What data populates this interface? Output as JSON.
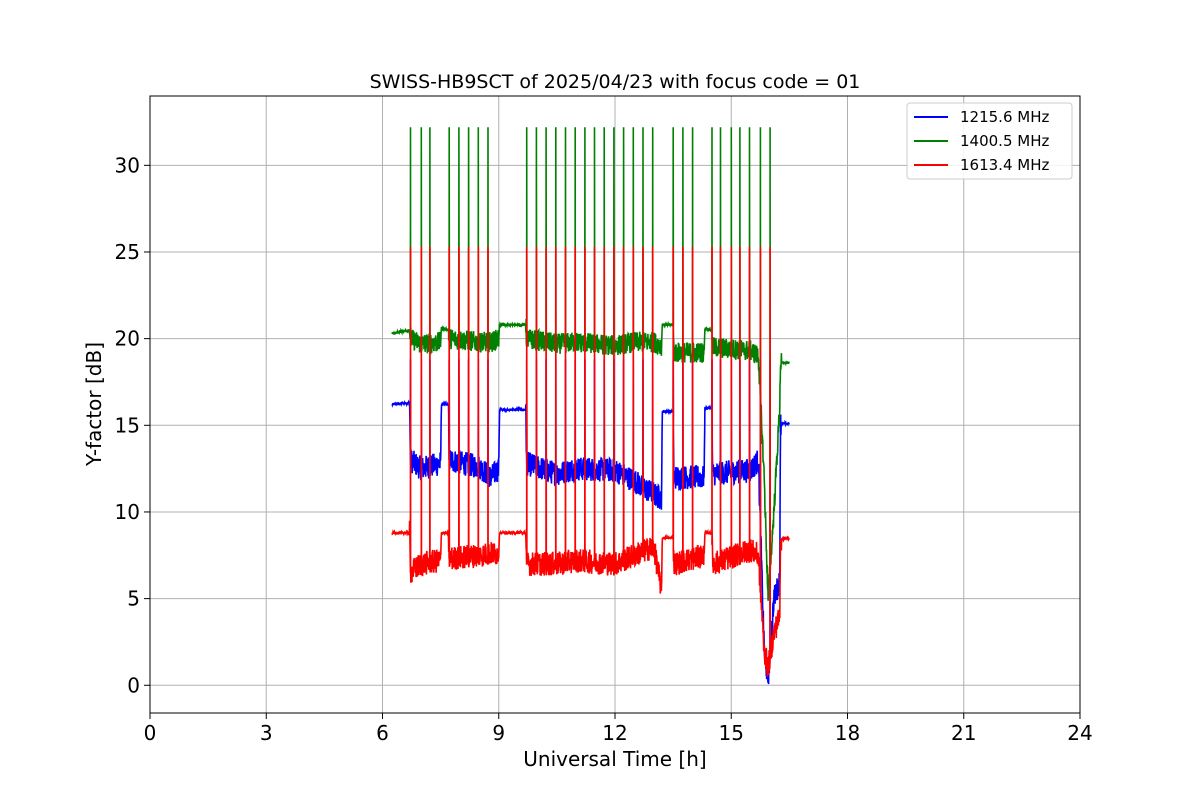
{
  "chart_data": {
    "type": "line",
    "title": "SWISS-HB9SCT of 2025/04/23 with focus code = 01",
    "xlabel": "Universal Time [h]",
    "ylabel": "Y-factor [dB]",
    "xlim": [
      0,
      24
    ],
    "ylim": [
      -1.6,
      34
    ],
    "xticks": [
      0,
      3,
      6,
      9,
      12,
      15,
      18,
      21,
      24
    ],
    "yticks": [
      0,
      5,
      10,
      15,
      20,
      25,
      30
    ],
    "grid": true,
    "legend_position": "top-right",
    "spike_times": [
      6.72,
      7.0,
      7.22,
      7.72,
      7.97,
      8.22,
      8.47,
      8.72,
      9.72,
      9.97,
      10.22,
      10.47,
      10.72,
      10.97,
      11.22,
      11.47,
      11.72,
      11.97,
      12.22,
      12.47,
      12.72,
      12.97,
      13.5,
      13.75,
      14.0,
      14.5,
      14.72,
      15.0,
      15.22,
      15.47,
      15.75,
      16.0
    ],
    "series": [
      {
        "name": "1215.6 MHz",
        "color": "#0000ff",
        "baseline": [
          [
            6.25,
            16.2
          ],
          [
            6.7,
            16.3
          ],
          [
            6.72,
            13.0
          ],
          [
            7.0,
            12.5
          ],
          [
            7.5,
            12.8
          ],
          [
            7.52,
            16.2
          ],
          [
            7.7,
            16.2
          ],
          [
            7.72,
            13.0
          ],
          [
            8.5,
            12.6
          ],
          [
            8.8,
            12.0
          ],
          [
            9.0,
            12.5
          ],
          [
            9.02,
            15.9
          ],
          [
            9.7,
            15.9
          ],
          [
            9.72,
            12.8
          ],
          [
            10.5,
            12.2
          ],
          [
            11.0,
            12.5
          ],
          [
            12.0,
            12.4
          ],
          [
            12.5,
            11.8
          ],
          [
            13.0,
            11.0
          ],
          [
            13.2,
            10.8
          ],
          [
            13.22,
            15.8
          ],
          [
            13.5,
            15.8
          ],
          [
            13.52,
            12.0
          ],
          [
            14.3,
            12.0
          ],
          [
            14.32,
            16.0
          ],
          [
            14.5,
            16.0
          ],
          [
            14.52,
            12.2
          ],
          [
            15.5,
            12.4
          ],
          [
            15.7,
            13.0
          ],
          [
            15.85,
            2.0
          ],
          [
            15.95,
            0.3
          ],
          [
            16.1,
            5.0
          ],
          [
            16.25,
            6.0
          ],
          [
            16.27,
            15.1
          ],
          [
            16.5,
            15.1
          ]
        ]
      },
      {
        "name": "1400.5 MHz",
        "color": "#008000",
        "baseline": [
          [
            6.25,
            20.3
          ],
          [
            6.7,
            20.5
          ],
          [
            6.72,
            20.0
          ],
          [
            7.0,
            19.7
          ],
          [
            7.5,
            19.8
          ],
          [
            7.52,
            20.6
          ],
          [
            7.7,
            20.5
          ],
          [
            7.72,
            20.0
          ],
          [
            8.5,
            19.8
          ],
          [
            8.8,
            19.8
          ],
          [
            9.0,
            20.0
          ],
          [
            9.02,
            20.8
          ],
          [
            9.7,
            20.8
          ],
          [
            9.72,
            20.0
          ],
          [
            10.5,
            19.7
          ],
          [
            11.0,
            19.8
          ],
          [
            12.0,
            19.6
          ],
          [
            12.5,
            19.8
          ],
          [
            13.0,
            19.8
          ],
          [
            13.2,
            19.6
          ],
          [
            13.22,
            20.8
          ],
          [
            13.5,
            20.8
          ],
          [
            13.52,
            19.2
          ],
          [
            14.3,
            19.2
          ],
          [
            14.32,
            20.6
          ],
          [
            14.5,
            20.5
          ],
          [
            14.52,
            19.5
          ],
          [
            15.5,
            19.3
          ],
          [
            15.7,
            19.0
          ],
          [
            15.85,
            12.0
          ],
          [
            15.95,
            5.0
          ],
          [
            16.1,
            10.0
          ],
          [
            16.25,
            16.0
          ],
          [
            16.27,
            18.6
          ],
          [
            16.5,
            18.6
          ]
        ]
      },
      {
        "name": "1613.4 MHz",
        "color": "#ff0000",
        "baseline": [
          [
            6.25,
            8.8
          ],
          [
            6.7,
            8.8
          ],
          [
            6.72,
            6.5
          ],
          [
            7.0,
            7.0
          ],
          [
            7.5,
            7.2
          ],
          [
            7.52,
            8.8
          ],
          [
            7.7,
            8.8
          ],
          [
            7.72,
            7.3
          ],
          [
            8.5,
            7.5
          ],
          [
            8.8,
            7.6
          ],
          [
            9.0,
            7.6
          ],
          [
            9.02,
            8.8
          ],
          [
            9.7,
            8.8
          ],
          [
            9.72,
            7.0
          ],
          [
            10.5,
            7.0
          ],
          [
            11.0,
            7.2
          ],
          [
            12.0,
            7.0
          ],
          [
            12.5,
            7.5
          ],
          [
            13.0,
            8.0
          ],
          [
            13.2,
            5.5
          ],
          [
            13.22,
            8.5
          ],
          [
            13.5,
            8.5
          ],
          [
            13.52,
            7.0
          ],
          [
            14.3,
            7.5
          ],
          [
            14.32,
            8.8
          ],
          [
            14.5,
            8.8
          ],
          [
            14.52,
            7.0
          ],
          [
            15.5,
            7.8
          ],
          [
            15.7,
            7.5
          ],
          [
            15.85,
            2.0
          ],
          [
            15.95,
            1.0
          ],
          [
            16.1,
            3.0
          ],
          [
            16.25,
            4.0
          ],
          [
            16.27,
            8.4
          ],
          [
            16.5,
            8.5
          ]
        ]
      }
    ]
  }
}
